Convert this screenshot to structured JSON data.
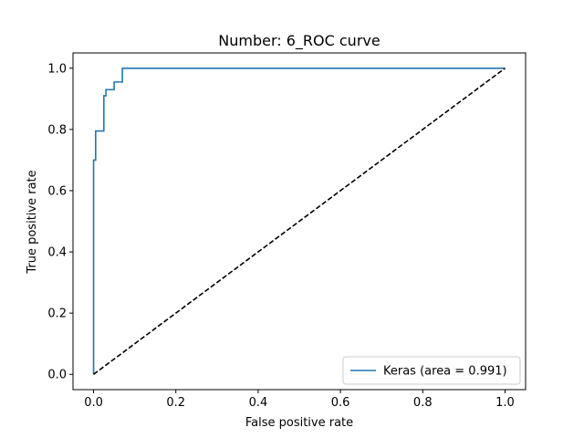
{
  "chart_data": {
    "type": "line",
    "title": "Number:  6_ROC curve",
    "xlabel": "False positive rate",
    "ylabel": "True positive rate",
    "xlim": [
      -0.05,
      1.05
    ],
    "ylim": [
      -0.05,
      1.05
    ],
    "x_ticks": [
      0.0,
      0.2,
      0.4,
      0.6,
      0.8,
      1.0
    ],
    "x_tick_labels": [
      "0.0",
      "0.2",
      "0.4",
      "0.6",
      "0.8",
      "1.0"
    ],
    "y_ticks": [
      0.0,
      0.2,
      0.4,
      0.6,
      0.8,
      1.0
    ],
    "y_tick_labels": [
      "0.0",
      "0.2",
      "0.4",
      "0.6",
      "0.8",
      "1.0"
    ],
    "grid": false,
    "legend_position": "lower-right",
    "series": [
      {
        "name": "Keras (area = 0.991)",
        "color": "#1f77b4",
        "style": "solid",
        "x": [
          0.0,
          0.0,
          0.005,
          0.005,
          0.012,
          0.012,
          0.025,
          0.025,
          0.03,
          0.03,
          0.04,
          0.04,
          0.05,
          0.05,
          0.07,
          0.07,
          1.0
        ],
        "y": [
          0.0,
          0.7,
          0.7,
          0.795,
          0.795,
          0.795,
          0.795,
          0.91,
          0.91,
          0.93,
          0.93,
          0.93,
          0.93,
          0.955,
          0.955,
          1.0,
          1.0
        ]
      },
      {
        "name": "",
        "color": "#000000",
        "style": "dashed",
        "x": [
          0.0,
          1.0
        ],
        "y": [
          0.0,
          1.0
        ]
      }
    ]
  }
}
